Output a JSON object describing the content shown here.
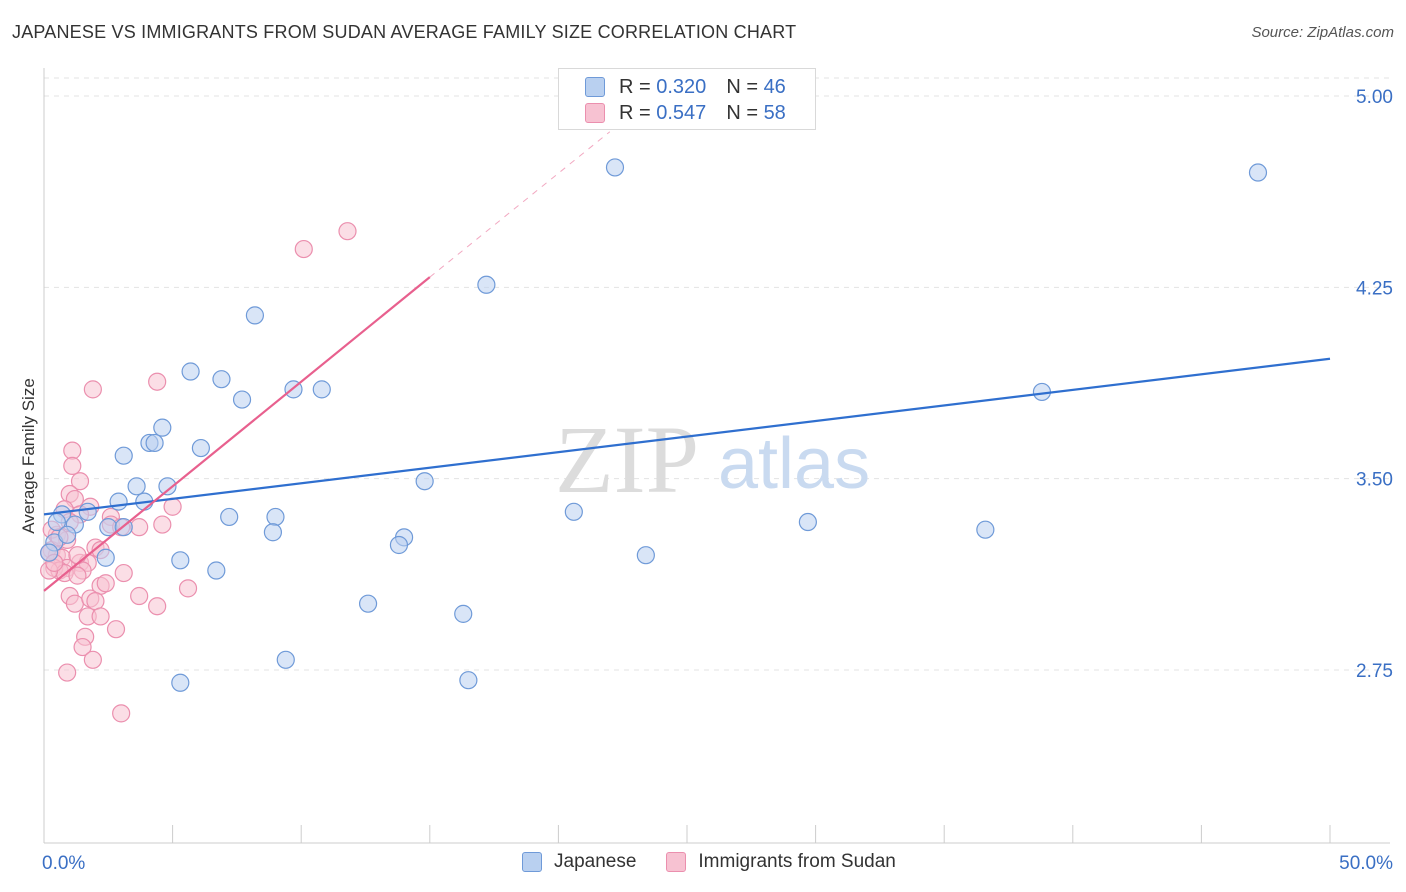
{
  "header": {
    "title": "JAPANESE VS IMMIGRANTS FROM SUDAN AVERAGE FAMILY SIZE CORRELATION CHART",
    "source": "Source: ZipAtlas.com"
  },
  "watermark": {
    "zip": "ZIP",
    "atlas": "atlas"
  },
  "legend": {
    "rows": [
      {
        "r_label": "R = ",
        "r_value": "0.320",
        "n_label": "N = ",
        "n_value": "46"
      },
      {
        "r_label": "R = ",
        "r_value": "0.547",
        "n_label": "N = ",
        "n_value": "58"
      }
    ]
  },
  "colors": {
    "japanese_fill": "#b9d0f0",
    "japanese_stroke": "#6f9ad8",
    "japanese_line": "#2f6fcf",
    "sudan_fill": "#f7c2d2",
    "sudan_stroke": "#eb8fae",
    "sudan_line": "#e8608e",
    "axis_label": "#3a6fc4",
    "grid": "#e3e3e3"
  },
  "chart_data": {
    "type": "scatter",
    "title": "JAPANESE VS IMMIGRANTS FROM SUDAN AVERAGE FAMILY SIZE CORRELATION CHART",
    "xlabel": "",
    "ylabel": "Average Family Size",
    "xlim": [
      0,
      50
    ],
    "ylim": [
      2.0,
      5.1
    ],
    "x_tick_labels": [
      "0.0%",
      "50.0%"
    ],
    "y_ticks": [
      2.75,
      3.5,
      4.25,
      5.0
    ],
    "y_tick_labels": [
      "2.75",
      "3.50",
      "4.25",
      "5.00"
    ],
    "grid": true,
    "legend_position": "top-center",
    "series": [
      {
        "name": "Japanese",
        "R": 0.32,
        "N": 46,
        "trend": {
          "x0": 0.0,
          "y0": 3.36,
          "x1": 50.0,
          "y1": 3.97,
          "dashed_to": null
        },
        "points": [
          [
            22.2,
            4.72
          ],
          [
            47.2,
            4.7
          ],
          [
            17.2,
            4.26
          ],
          [
            8.2,
            4.14
          ],
          [
            5.7,
            3.92
          ],
          [
            6.9,
            3.89
          ],
          [
            9.7,
            3.85
          ],
          [
            10.8,
            3.85
          ],
          [
            7.7,
            3.81
          ],
          [
            38.8,
            3.84
          ],
          [
            4.6,
            3.7
          ],
          [
            4.1,
            3.64
          ],
          [
            4.3,
            3.64
          ],
          [
            6.1,
            3.62
          ],
          [
            3.1,
            3.59
          ],
          [
            3.6,
            3.47
          ],
          [
            4.8,
            3.47
          ],
          [
            14.8,
            3.49
          ],
          [
            2.9,
            3.41
          ],
          [
            3.9,
            3.41
          ],
          [
            0.7,
            3.36
          ],
          [
            1.7,
            3.37
          ],
          [
            20.6,
            3.37
          ],
          [
            7.2,
            3.35
          ],
          [
            9.0,
            3.35
          ],
          [
            0.5,
            3.33
          ],
          [
            1.2,
            3.32
          ],
          [
            2.5,
            3.31
          ],
          [
            3.1,
            3.31
          ],
          [
            8.9,
            3.29
          ],
          [
            29.7,
            3.33
          ],
          [
            36.6,
            3.3
          ],
          [
            0.4,
            3.25
          ],
          [
            14.0,
            3.27
          ],
          [
            13.8,
            3.24
          ],
          [
            2.4,
            3.19
          ],
          [
            5.3,
            3.18
          ],
          [
            23.4,
            3.2
          ],
          [
            6.7,
            3.14
          ],
          [
            12.6,
            3.01
          ],
          [
            16.3,
            2.97
          ],
          [
            9.4,
            2.79
          ],
          [
            5.3,
            2.7
          ],
          [
            16.5,
            2.71
          ],
          [
            0.2,
            3.21
          ],
          [
            0.9,
            3.28
          ]
        ]
      },
      {
        "name": "Immigrants from Sudan",
        "R": 0.547,
        "N": 58,
        "trend": {
          "x0": 0.0,
          "y0": 3.06,
          "x1": 15.0,
          "y1": 4.29,
          "dashed_to": {
            "x": 22.0,
            "y": 4.86
          }
        },
        "points": [
          [
            11.8,
            4.47
          ],
          [
            10.1,
            4.4
          ],
          [
            4.4,
            3.88
          ],
          [
            1.9,
            3.85
          ],
          [
            1.1,
            3.61
          ],
          [
            1.1,
            3.55
          ],
          [
            1.4,
            3.49
          ],
          [
            1.0,
            3.44
          ],
          [
            1.2,
            3.42
          ],
          [
            1.8,
            3.39
          ],
          [
            5.0,
            3.39
          ],
          [
            0.8,
            3.38
          ],
          [
            1.4,
            3.36
          ],
          [
            2.6,
            3.35
          ],
          [
            1.0,
            3.33
          ],
          [
            2.6,
            3.32
          ],
          [
            3.0,
            3.31
          ],
          [
            3.7,
            3.31
          ],
          [
            4.6,
            3.32
          ],
          [
            0.5,
            3.28
          ],
          [
            0.9,
            3.26
          ],
          [
            2.0,
            3.23
          ],
          [
            2.2,
            3.22
          ],
          [
            0.3,
            3.22
          ],
          [
            0.5,
            3.2
          ],
          [
            0.7,
            3.19
          ],
          [
            0.2,
            3.21
          ],
          [
            1.4,
            3.17
          ],
          [
            1.7,
            3.17
          ],
          [
            0.9,
            3.15
          ],
          [
            0.4,
            3.15
          ],
          [
            0.6,
            3.14
          ],
          [
            1.5,
            3.14
          ],
          [
            0.8,
            3.13
          ],
          [
            1.3,
            3.12
          ],
          [
            0.2,
            3.14
          ],
          [
            3.1,
            3.13
          ],
          [
            2.2,
            3.08
          ],
          [
            5.6,
            3.07
          ],
          [
            1.0,
            3.04
          ],
          [
            3.7,
            3.04
          ],
          [
            1.2,
            3.01
          ],
          [
            1.8,
            3.03
          ],
          [
            2.0,
            3.02
          ],
          [
            4.4,
            3.0
          ],
          [
            1.7,
            2.96
          ],
          [
            2.2,
            2.96
          ],
          [
            2.8,
            2.91
          ],
          [
            1.6,
            2.88
          ],
          [
            1.5,
            2.84
          ],
          [
            1.9,
            2.79
          ],
          [
            0.9,
            2.74
          ],
          [
            3.0,
            2.58
          ],
          [
            0.3,
            3.3
          ],
          [
            0.6,
            3.27
          ],
          [
            1.3,
            3.2
          ],
          [
            2.4,
            3.09
          ],
          [
            0.4,
            3.17
          ]
        ]
      }
    ]
  },
  "bottom_legend": {
    "items": [
      "Japanese",
      "Immigrants from Sudan"
    ]
  }
}
